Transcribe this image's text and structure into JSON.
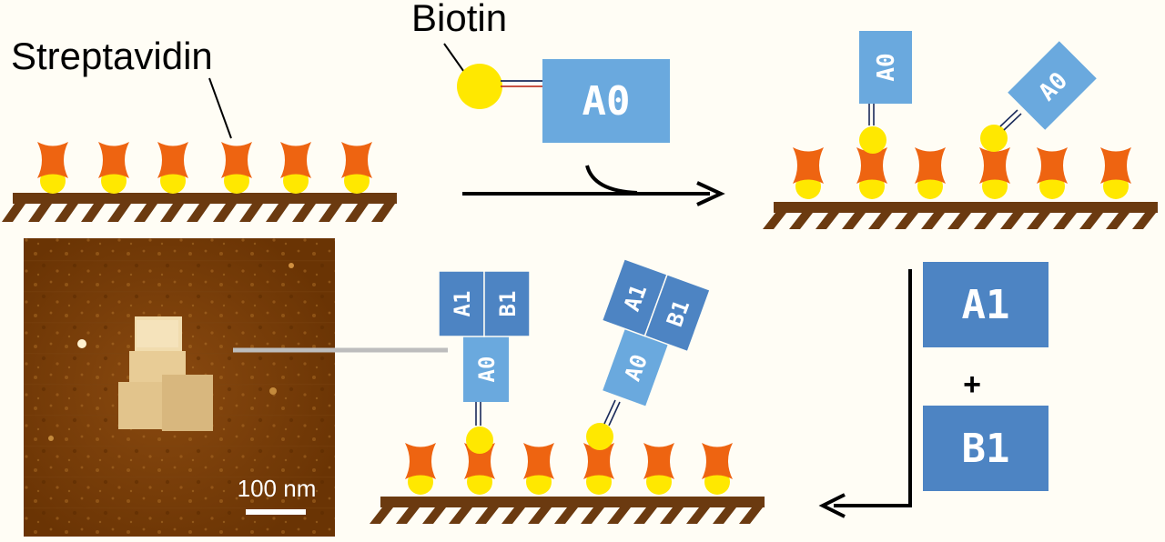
{
  "labels": {
    "streptavidin": "Streptavidin",
    "biotin": "Biotin"
  },
  "tiles": {
    "a0": "A0",
    "a1": "A1",
    "b1": "B1"
  },
  "operator_plus": "+",
  "afm": {
    "scale_bar_label": "100 nm"
  },
  "colors": {
    "background": "#fffdf5",
    "surface": "#6b3a10",
    "streptavidin": "#ee6411",
    "biotin": "#ffe800",
    "tile_light": "#6aa9de",
    "tile_dark": "#4d84c3",
    "arrow": "#000000"
  }
}
